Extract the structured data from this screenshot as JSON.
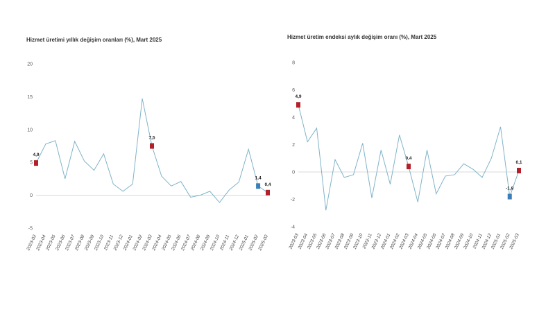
{
  "colors": {
    "line": "#7fb3c8",
    "highlight_red": "#b3202a",
    "highlight_blue": "#3b7fb6",
    "axis": "#cccccc"
  },
  "chart_data": [
    {
      "type": "line",
      "title": "Hizmet üretimi yıllık değişim oranları (%), Mart 2025",
      "xlabel": "",
      "ylabel": "",
      "ylim": [
        -5,
        20
      ],
      "yticks": [
        -5,
        0,
        5,
        10,
        15,
        20
      ],
      "grid": false,
      "x": [
        "2023-03",
        "2023-04",
        "2023-05",
        "2023-06",
        "2023-07",
        "2023-08",
        "2023-09",
        "2023-10",
        "2023-11",
        "2023-12",
        "2024-01",
        "2024-02",
        "2024-03",
        "2024-04",
        "2024-05",
        "2024-06",
        "2024-07",
        "2024-08",
        "2024-09",
        "2024-10",
        "2024-11",
        "2024-12",
        "2025-01",
        "2025-02",
        "2025-03"
      ],
      "series": [
        {
          "values": [
            4.9,
            7.8,
            8.3,
            2.5,
            8.2,
            5.2,
            3.8,
            6.3,
            1.7,
            0.6,
            1.7,
            14.7,
            7.5,
            2.9,
            1.4,
            2.1,
            -0.3,
            0.0,
            0.6,
            -1.1,
            0.8,
            2.0,
            7.0,
            1.4,
            0.4
          ]
        }
      ],
      "highlights": [
        {
          "x": "2023-03",
          "value": 4.9,
          "label": "4,9",
          "color": "red"
        },
        {
          "x": "2024-03",
          "value": 7.5,
          "label": "7,5",
          "color": "red"
        },
        {
          "x": "2025-02",
          "value": 1.4,
          "label": "1,4",
          "color": "blue"
        },
        {
          "x": "2025-03",
          "value": 0.4,
          "label": "0,4",
          "color": "red"
        }
      ]
    },
    {
      "type": "line",
      "title": "Hizmet üretim endeksi aylık değişim oranı (%), Mart 2025",
      "xlabel": "",
      "ylabel": "",
      "ylim": [
        -4,
        8
      ],
      "yticks": [
        -4,
        -2,
        0,
        2,
        4,
        6,
        8
      ],
      "grid": false,
      "x": [
        "2023-03",
        "2023-04",
        "2023-05",
        "2023-06",
        "2023-07",
        "2023-08",
        "2023-09",
        "2023-10",
        "2023-11",
        "2023-12",
        "2024-01",
        "2024-02",
        "2024-03",
        "2024-04",
        "2024-05",
        "2024-06",
        "2024-07",
        "2024-08",
        "2024-09",
        "2024-10",
        "2024-11",
        "2024-12",
        "2025-01",
        "2025-02",
        "2025-03"
      ],
      "series": [
        {
          "values": [
            4.9,
            2.2,
            3.2,
            -2.8,
            0.9,
            -0.4,
            -0.2,
            2.1,
            -1.9,
            1.6,
            -0.9,
            2.7,
            0.4,
            -2.2,
            1.6,
            -1.6,
            -0.3,
            -0.2,
            0.6,
            0.2,
            -0.4,
            1.0,
            3.3,
            -1.8,
            0.1
          ]
        }
      ],
      "highlights": [
        {
          "x": "2023-03",
          "value": 4.9,
          "label": "4,9",
          "color": "red"
        },
        {
          "x": "2024-03",
          "value": 0.4,
          "label": "0,4",
          "color": "red"
        },
        {
          "x": "2025-02",
          "value": -1.8,
          "label": "-1,8",
          "color": "blue"
        },
        {
          "x": "2025-03",
          "value": 0.1,
          "label": "0,1",
          "color": "red"
        }
      ]
    }
  ]
}
